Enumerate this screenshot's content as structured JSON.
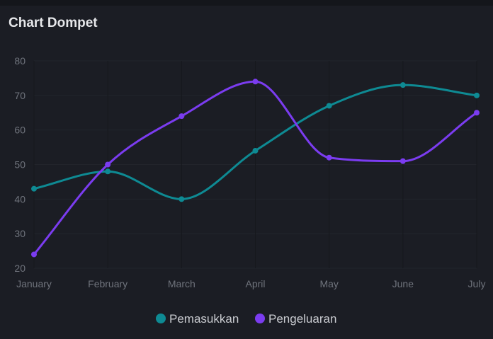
{
  "card": {
    "title": "Chart Dompet"
  },
  "chart_data": {
    "type": "line",
    "categories": [
      "January",
      "February",
      "March",
      "April",
      "May",
      "June",
      "July"
    ],
    "series": [
      {
        "name": "Pemasukkan",
        "color": "#0e8a93",
        "values": [
          43,
          48,
          40,
          54,
          67,
          73,
          70
        ]
      },
      {
        "name": "Pengeluaran",
        "color": "#7b3cf0",
        "values": [
          24,
          50,
          64,
          74,
          52,
          51,
          65
        ]
      }
    ],
    "yticks": [
      20,
      30,
      40,
      50,
      60,
      70,
      80
    ],
    "ylim": [
      20,
      80
    ],
    "grid": true,
    "smooth": true,
    "legend": "bottom-center"
  }
}
